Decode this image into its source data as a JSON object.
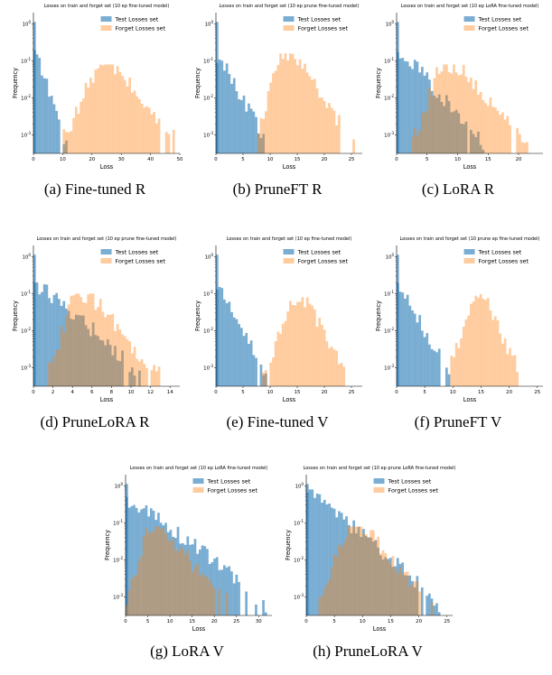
{
  "colors": {
    "test": "#1f77b4",
    "forget": "#ff7f0e"
  },
  "chart_data": [
    {
      "id": "a",
      "type": "bar",
      "caption": "(a) Fine-tuned R",
      "title": "Losses on train and forget set (10 ep fine-tuned model)",
      "xlabel": "Loss",
      "ylabel": "Frequency",
      "xlim": [
        0,
        50
      ],
      "xticks": [
        0,
        10,
        20,
        30,
        40,
        50
      ],
      "ylim_log": [
        -3.5,
        0.3
      ],
      "legend": [
        "Test Losses set",
        "Forget Losses set"
      ],
      "legend_position": "top-right",
      "series": [
        {
          "name": "Test Losses set",
          "distribution": {
            "kind": "decay",
            "start": 0,
            "end": 11.5,
            "peak": 0,
            "max_log": -0.7,
            "min_log": -3.4
          }
        },
        {
          "name": "Forget Losses set",
          "distribution": {
            "kind": "bell",
            "start": 10,
            "end": 48,
            "peak": 24,
            "max_log": -1.1,
            "min_log": -3.2
          }
        }
      ]
    },
    {
      "id": "b",
      "type": "bar",
      "caption": "(b) PruneFT R",
      "title": "Losses on train and forget set (10 ep prune fine-tuned model)",
      "xlabel": "Loss",
      "ylabel": "Frequency",
      "xlim": [
        0,
        27
      ],
      "xticks": [
        0,
        5,
        10,
        15,
        20,
        25
      ],
      "ylim_log": [
        -3.5,
        0.3
      ],
      "legend": [
        "Test Losses set",
        "Forget Losses set"
      ],
      "legend_position": "top-right",
      "series": [
        {
          "name": "Test Losses set",
          "distribution": {
            "kind": "decay",
            "start": 0,
            "end": 9.5,
            "peak": 0,
            "max_log": -0.8,
            "min_log": -3.4
          }
        },
        {
          "name": "Forget Losses set",
          "distribution": {
            "kind": "bell",
            "start": 7,
            "end": 25.5,
            "peak": 12.5,
            "max_log": -0.8,
            "min_log": -3.3
          }
        }
      ]
    },
    {
      "id": "c",
      "type": "bar",
      "caption": "(c) LoRA R",
      "title": "Losses on train and forget set (10 ep LoRA fine-tuned model)",
      "xlabel": "Loss",
      "ylabel": "Frequency",
      "xlim": [
        0,
        24
      ],
      "xticks": [
        0,
        5,
        10,
        15,
        20
      ],
      "ylim_log": [
        -3.5,
        0.3
      ],
      "legend": [
        "Test Losses set",
        "Forget Losses set"
      ],
      "legend_position": "top-right",
      "series": [
        {
          "name": "Test Losses set",
          "distribution": {
            "kind": "decay",
            "start": 0,
            "end": 14.5,
            "peak": 0,
            "max_log": -0.7,
            "min_log": -3.4
          }
        },
        {
          "name": "Forget Losses set",
          "distribution": {
            "kind": "bell",
            "start": 2.5,
            "end": 21.5,
            "peak": 8,
            "max_log": -1.1,
            "min_log": -3.3
          }
        }
      ]
    },
    {
      "id": "d",
      "type": "bar",
      "caption": "(d) PruneLoRA R",
      "title": "Losses on train and forget set (10 ep prune fine-tuned model)",
      "xlabel": "Loss",
      "ylabel": "Frequency",
      "xlim": [
        0,
        15
      ],
      "xticks": [
        0,
        2,
        4,
        6,
        8,
        10,
        12,
        14
      ],
      "ylim_log": [
        -3.5,
        0.3
      ],
      "legend": [
        "Test Losses set",
        "Forget Losses set"
      ],
      "legend_position": "top-right",
      "series": [
        {
          "name": "Test Losses set",
          "distribution": {
            "kind": "decay",
            "start": 0,
            "end": 11,
            "peak": 0,
            "max_log": -0.7,
            "min_log": -3.3
          }
        },
        {
          "name": "Forget Losses set",
          "distribution": {
            "kind": "bell",
            "start": 1.5,
            "end": 13,
            "peak": 4.5,
            "max_log": -1.0,
            "min_log": -3.3
          }
        }
      ]
    },
    {
      "id": "e",
      "type": "bar",
      "caption": "(e) Fine-tuned V",
      "title": "Losses on train and forget set (10 ep fine-tuned model)",
      "xlabel": "Loss",
      "ylabel": "Frequency",
      "xlim": [
        0,
        27
      ],
      "xticks": [
        0,
        5,
        10,
        15,
        20,
        25
      ],
      "ylim_log": [
        -3.5,
        0.3
      ],
      "legend": [
        "Test Losses set",
        "Forget Losses set"
      ],
      "legend_position": "top-right",
      "series": [
        {
          "name": "Test Losses set",
          "distribution": {
            "kind": "decay",
            "start": 0,
            "end": 9.5,
            "peak": 0,
            "max_log": -0.7,
            "min_log": -3.4
          }
        },
        {
          "name": "Forget Losses set",
          "distribution": {
            "kind": "bell",
            "start": 8.5,
            "end": 24,
            "peak": 15.5,
            "max_log": -1.1,
            "min_log": -3.3
          }
        }
      ]
    },
    {
      "id": "f",
      "type": "bar",
      "caption": "(f) PruneFT V",
      "title": "Losses on train and forget set (10 prune ep fine-tuned model)",
      "xlabel": "Loss",
      "ylabel": "Frequency",
      "xlim": [
        0,
        26
      ],
      "xticks": [
        0,
        5,
        10,
        15,
        20,
        25
      ],
      "ylim_log": [
        -3.5,
        0.3
      ],
      "legend": [
        "Test Losses set",
        "Forget Losses set"
      ],
      "legend_position": "top-right",
      "series": [
        {
          "name": "Test Losses set",
          "distribution": {
            "kind": "decay",
            "start": 0,
            "end": 9.5,
            "peak": 0,
            "max_log": -0.7,
            "min_log": -3.4
          }
        },
        {
          "name": "Forget Losses set",
          "distribution": {
            "kind": "bell",
            "start": 9,
            "end": 22,
            "peak": 14.5,
            "max_log": -1.0,
            "min_log": -3.3
          }
        }
      ]
    },
    {
      "id": "g",
      "type": "bar",
      "caption": "(g) LoRA V",
      "title": "Losses on train and forget set (10 ep LoRA fine-tuned model)",
      "xlabel": "Loss",
      "ylabel": "Frequency",
      "xlim": [
        0,
        33
      ],
      "xticks": [
        0,
        5,
        10,
        15,
        20,
        25,
        30
      ],
      "ylim_log": [
        -3.5,
        0.3
      ],
      "legend": [
        "Test Losses set",
        "Forget Losses set"
      ],
      "legend_position": "top-right",
      "series": [
        {
          "name": "Test Losses set",
          "distribution": {
            "kind": "decay",
            "start": 0,
            "end": 32,
            "peak": 0,
            "max_log": -0.3,
            "min_log": -3.4
          }
        },
        {
          "name": "Forget Losses set",
          "distribution": {
            "kind": "bell",
            "start": 0,
            "end": 23,
            "peak": 6,
            "max_log": -1.1,
            "min_log": -3.3
          }
        }
      ]
    },
    {
      "id": "h",
      "type": "bar",
      "caption": "(h) PruneLoRA V",
      "title": "Losses on train and forget set (10 ep prune LoRA fine-tuned model)",
      "xlabel": "Loss",
      "ylabel": "Frequency",
      "xlim": [
        0,
        26
      ],
      "xticks": [
        0,
        5,
        10,
        15,
        20,
        25
      ],
      "ylim_log": [
        -3.5,
        0.3
      ],
      "legend": [
        "Test Losses set",
        "Forget Losses set"
      ],
      "legend_position": "top-right",
      "series": [
        {
          "name": "Test Losses set",
          "distribution": {
            "kind": "decay",
            "start": 0,
            "end": 24,
            "peak": 0,
            "max_log": -0.1,
            "min_log": -3.4
          }
        },
        {
          "name": "Forget Losses set",
          "distribution": {
            "kind": "bell",
            "start": 2,
            "end": 23,
            "peak": 8,
            "max_log": -1.1,
            "min_log": -3.3
          }
        }
      ]
    }
  ]
}
